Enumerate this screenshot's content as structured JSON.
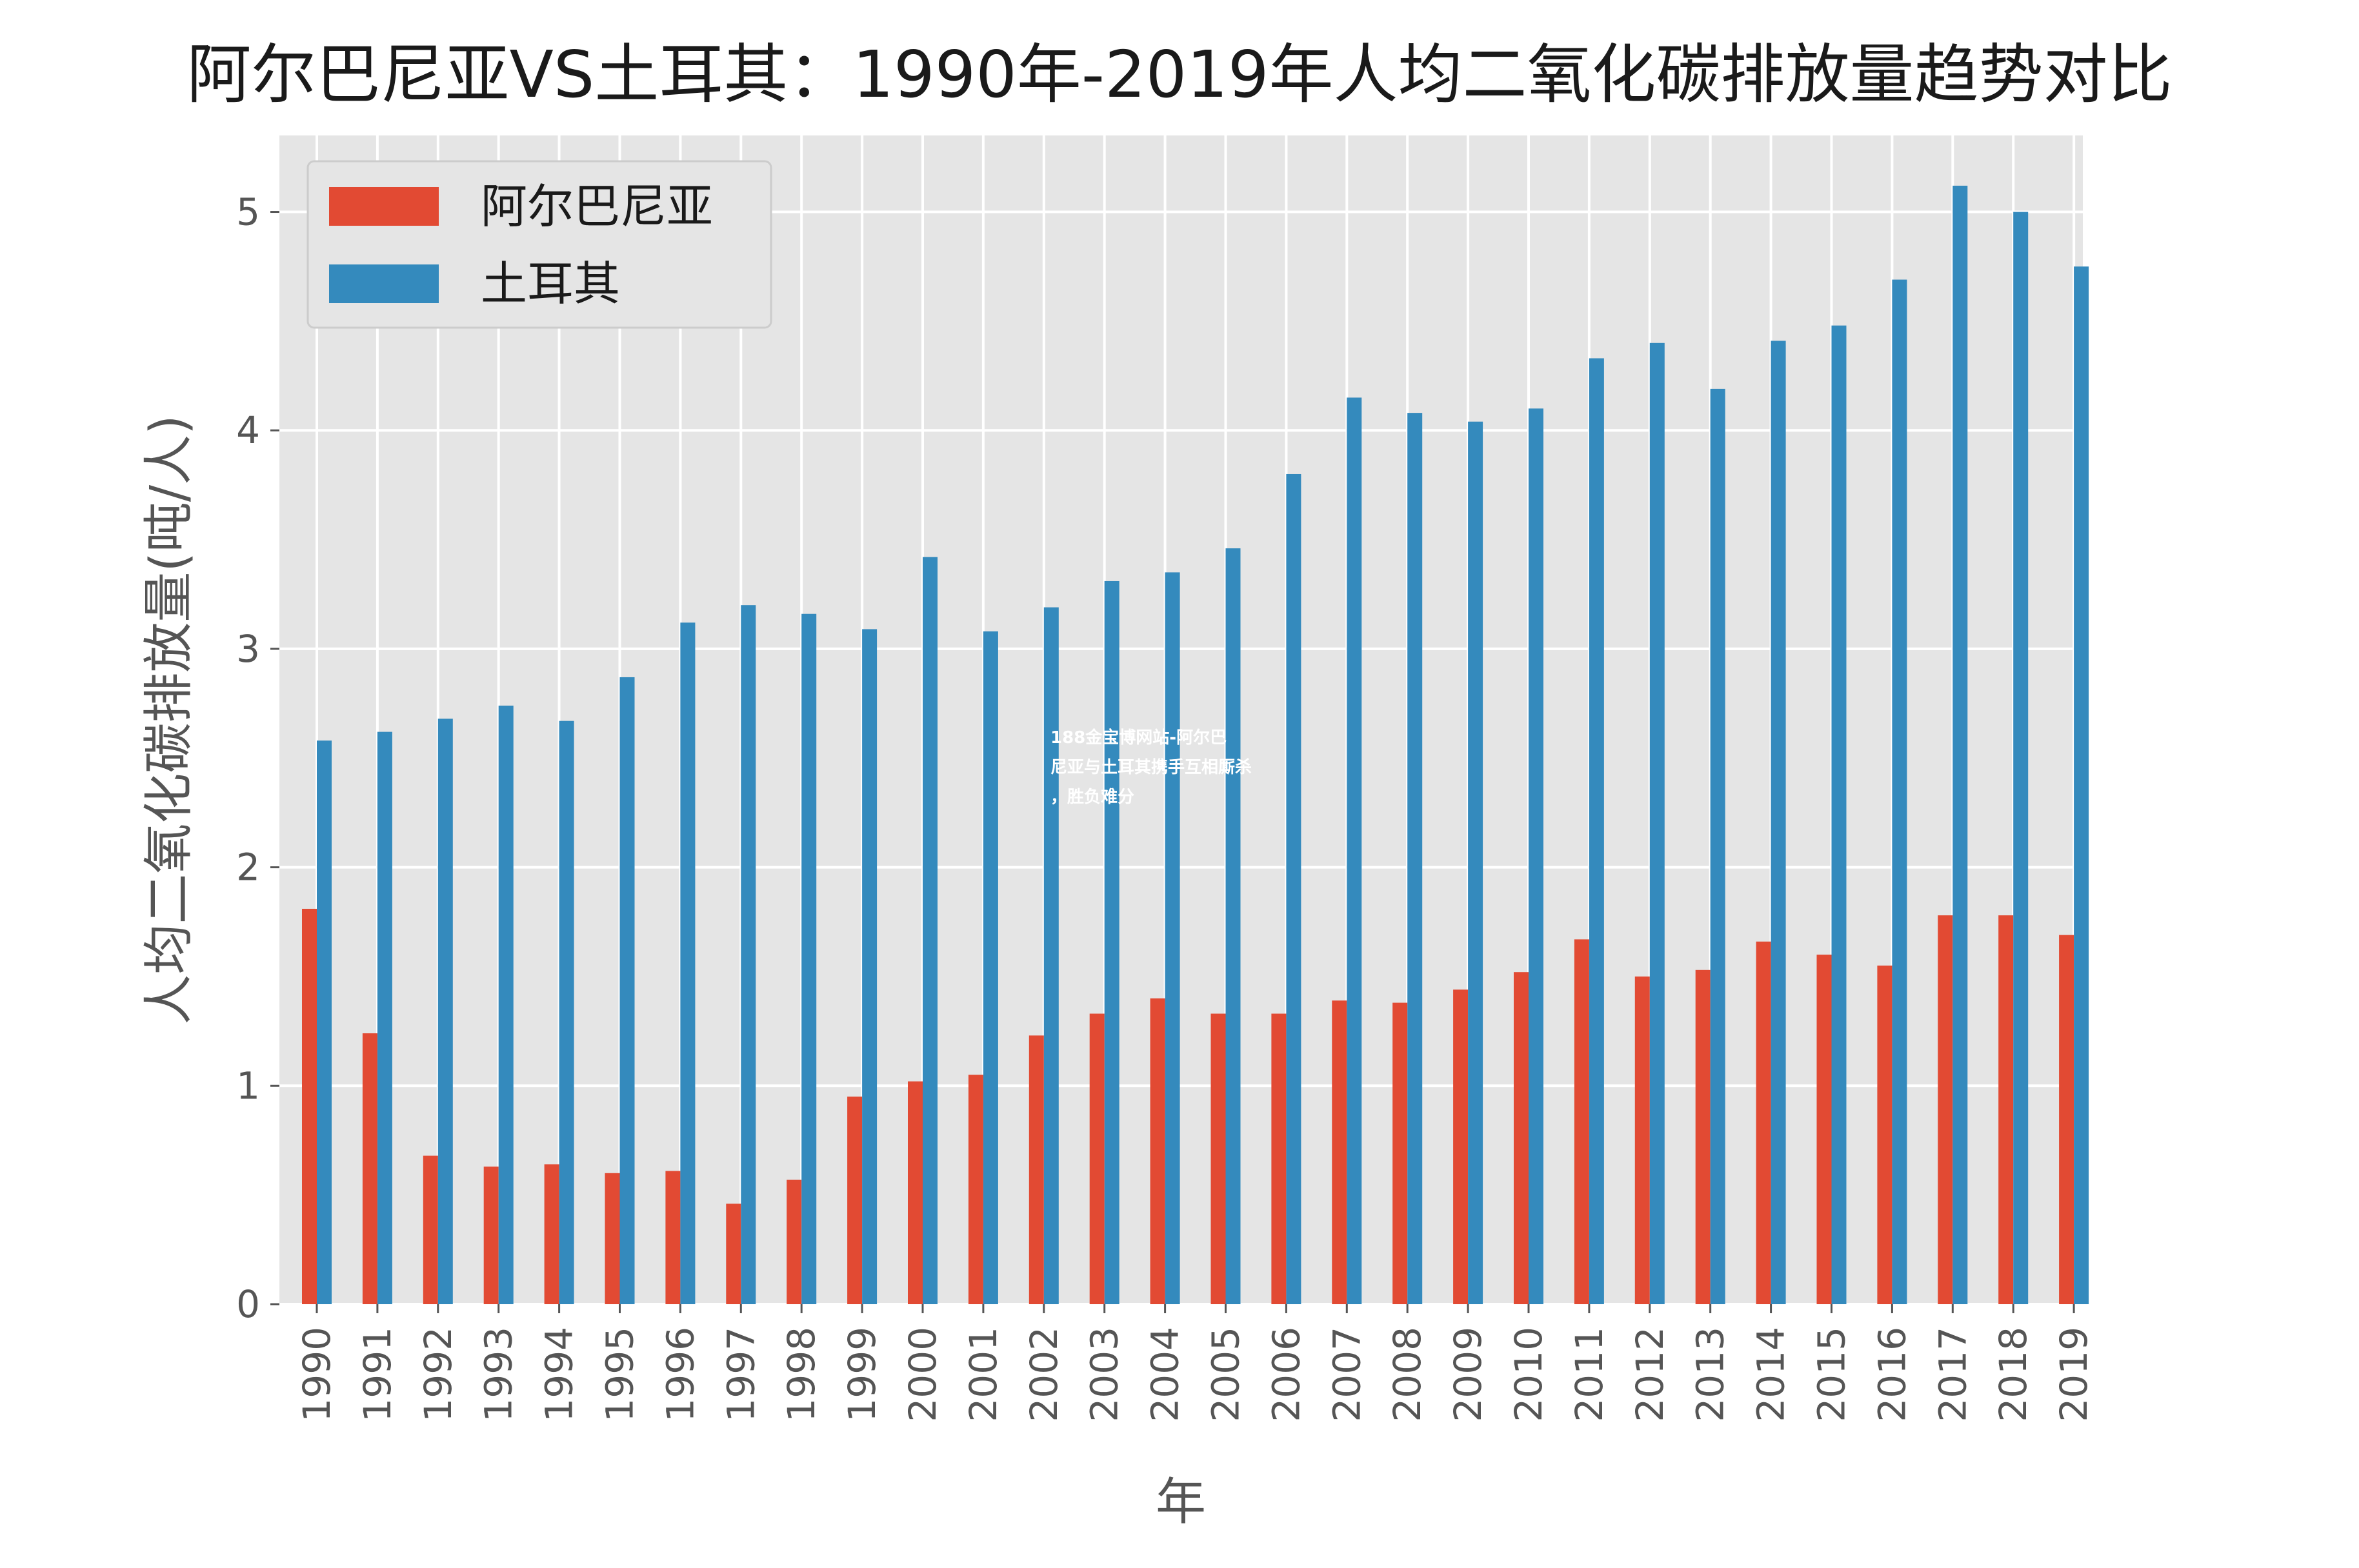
{
  "chart_data": {
    "type": "bar",
    "title": "阿尔巴尼亚VS土耳其：1990年-2019年人均二氧化碳排放量趋势对比",
    "xlabel": "年",
    "ylabel": "人均二氧化碳排放量(吨/人)",
    "ylim": [
      0,
      5.35
    ],
    "yticks": [
      0,
      1,
      2,
      3,
      4,
      5
    ],
    "grid": true,
    "legend_position": "top-left",
    "categories": [
      "1990",
      "1991",
      "1992",
      "1993",
      "1994",
      "1995",
      "1996",
      "1997",
      "1998",
      "1999",
      "2000",
      "2001",
      "2002",
      "2003",
      "2004",
      "2005",
      "2006",
      "2007",
      "2008",
      "2009",
      "2010",
      "2011",
      "2012",
      "2013",
      "2014",
      "2015",
      "2016",
      "2017",
      "2018",
      "2019"
    ],
    "series": [
      {
        "name": "阿尔巴尼亚",
        "color": "#e24a33",
        "values": [
          1.81,
          1.24,
          0.68,
          0.63,
          0.64,
          0.6,
          0.61,
          0.46,
          0.57,
          0.95,
          1.02,
          1.05,
          1.23,
          1.33,
          1.4,
          1.33,
          1.33,
          1.39,
          1.38,
          1.44,
          1.52,
          1.67,
          1.5,
          1.53,
          1.66,
          1.6,
          1.55,
          1.78,
          1.78,
          1.69
        ]
      },
      {
        "name": "土耳其",
        "color": "#348abd",
        "values": [
          2.58,
          2.62,
          2.68,
          2.74,
          2.67,
          2.87,
          3.12,
          3.2,
          3.16,
          3.09,
          3.42,
          3.08,
          3.19,
          3.31,
          3.35,
          3.46,
          3.8,
          4.15,
          4.08,
          4.04,
          4.1,
          4.33,
          4.4,
          4.19,
          4.41,
          4.48,
          4.69,
          5.12,
          5.0,
          4.75
        ]
      }
    ]
  },
  "watermark": {
    "line1": "188金宝博网站-阿尔巴",
    "line2": "尼亚与土耳其携手互相厮杀",
    "line3": "，胜负难分"
  }
}
